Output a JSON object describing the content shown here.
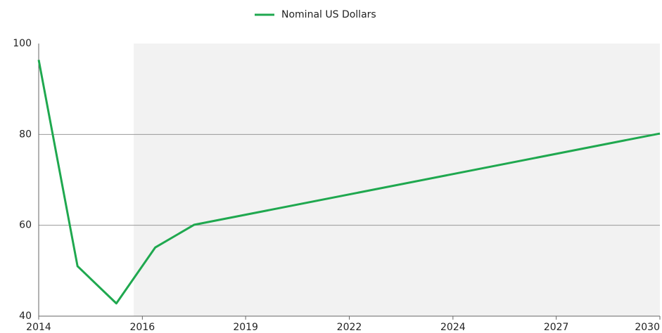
{
  "chart_data": {
    "type": "line",
    "x": [
      2014,
      2015,
      2016,
      2017,
      2018,
      2030
    ],
    "series": [
      {
        "name": "Nominal US Dollars",
        "color": "#1fa84f",
        "values": [
          96.4,
          51,
          42.8,
          55.1,
          60.1,
          80.2
        ]
      }
    ],
    "xlim": [
      2014,
      2030
    ],
    "xticks": [
      2014,
      {
        "value": 2016.67,
        "label": "2016"
      },
      {
        "value": 2019.33,
        "label": "2019"
      },
      2022,
      {
        "value": 2024.67,
        "label": "2024"
      },
      {
        "value": 2027.33,
        "label": "2027"
      },
      2030
    ],
    "ylim": [
      40,
      100
    ],
    "yticks": [
      40,
      60,
      80,
      100
    ],
    "grid": true,
    "legend": "top",
    "shaded_region": [
      2016.45,
      2030
    ],
    "shade_color": "#f2f2f2"
  }
}
